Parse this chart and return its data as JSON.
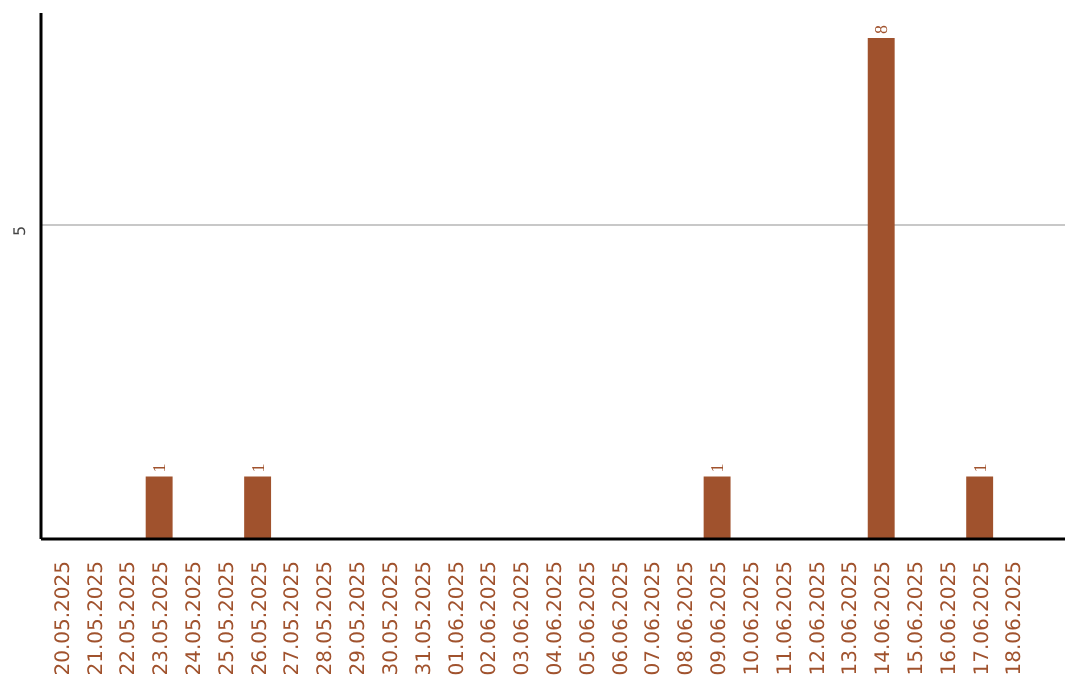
{
  "chart_data": {
    "type": "bar",
    "categories": [
      "20.05.2025",
      "21.05.2025",
      "22.05.2025",
      "23.05.2025",
      "24.05.2025",
      "25.05.2025",
      "26.05.2025",
      "27.05.2025",
      "28.05.2025",
      "29.05.2025",
      "30.05.2025",
      "31.05.2025",
      "01.06.2025",
      "02.06.2025",
      "03.06.2025",
      "04.06.2025",
      "05.06.2025",
      "06.06.2025",
      "07.06.2025",
      "08.06.2025",
      "09.06.2025",
      "10.06.2025",
      "11.06.2025",
      "12.06.2025",
      "13.06.2025",
      "14.06.2025",
      "15.06.2025",
      "16.06.2025",
      "17.06.2025",
      "18.06.2025"
    ],
    "values": [
      0,
      0,
      0,
      1,
      0,
      0,
      1,
      0,
      0,
      0,
      0,
      0,
      0,
      0,
      0,
      0,
      0,
      0,
      0,
      0,
      1,
      0,
      0,
      0,
      0,
      8,
      0,
      0,
      1,
      0
    ],
    "value_labels": [
      null,
      null,
      null,
      "1",
      null,
      null,
      "1",
      null,
      null,
      null,
      null,
      null,
      null,
      null,
      null,
      null,
      null,
      null,
      null,
      null,
      "1",
      null,
      null,
      null,
      null,
      "8",
      null,
      null,
      "1",
      null
    ],
    "color": "#a0522d",
    "ylim": [
      0,
      8.4
    ],
    "yticks": [
      5
    ],
    "grid": "y"
  }
}
